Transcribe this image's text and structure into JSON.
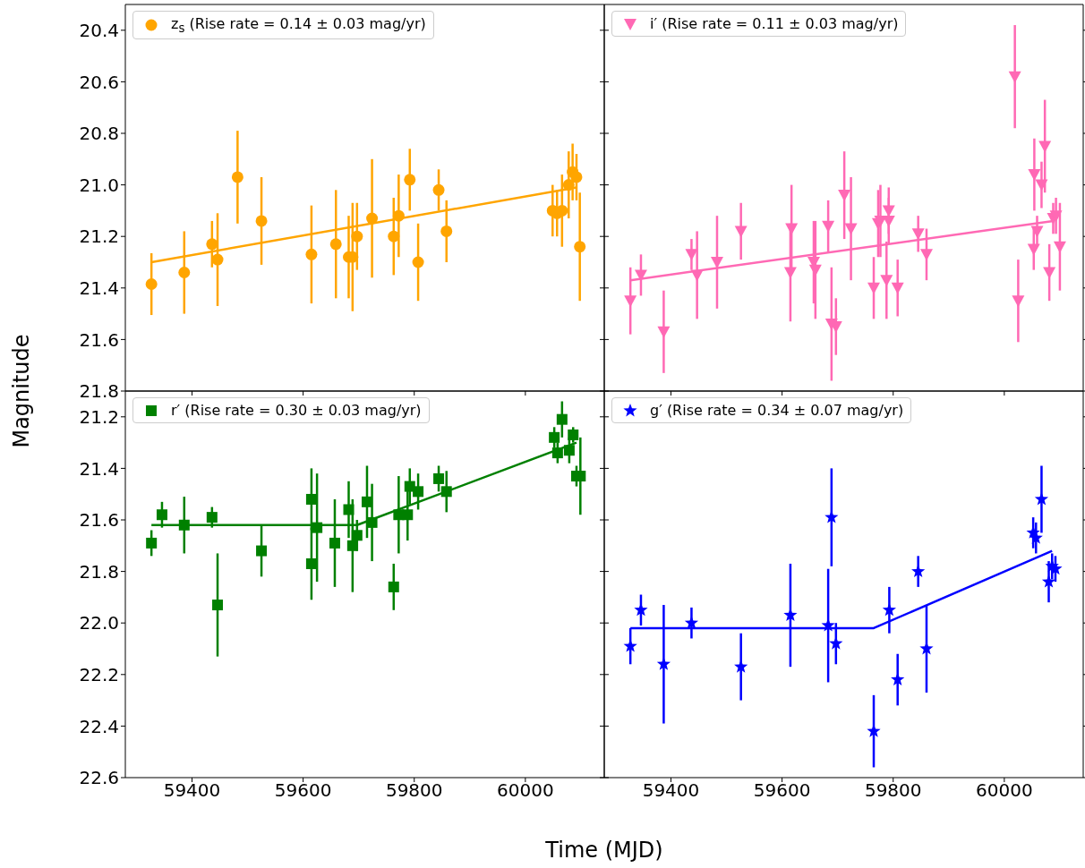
{
  "chart_data": [
    {
      "type": "scatter",
      "ylabel": "Magnitude",
      "legend": "top left",
      "tick_labels": "y",
      "xlim": [
        59280,
        60142
      ],
      "xticks": [
        59400,
        59600,
        59800,
        60000
      ],
      "ylim": [
        21.8,
        20.3
      ],
      "yticks": [
        20.4,
        20.6,
        20.8,
        {
          "value": 21,
          "label": "21.0"
        },
        21.2,
        21.4,
        21.6,
        21.8
      ],
      "series": [
        {
          "marker": "circle",
          "name": "z$_{s}$ (Rise rate = 0.14 ± 0.03 mag/yr)",
          "color": "#ffa500",
          "x": [
            59327,
            59386,
            59436,
            59446,
            59482,
            59525,
            59615,
            59659,
            59682,
            59689,
            59697,
            59724,
            59763,
            59772,
            59792,
            59807,
            59844,
            59858,
            60049,
            60057,
            60066,
            60078,
            60085,
            60092,
            60098
          ],
          "values": [
            21.385,
            21.34,
            21.23,
            21.29,
            20.97,
            21.14,
            21.27,
            21.23,
            21.28,
            21.28,
            21.2,
            21.13,
            21.2,
            21.12,
            20.98,
            21.3,
            21.02,
            21.18,
            21.1,
            21.11,
            21.1,
            21.0,
            20.95,
            20.97,
            21.24
          ],
          "errors": [
            0.12,
            0.16,
            0.09,
            0.18,
            0.18,
            0.17,
            0.19,
            0.21,
            0.16,
            0.21,
            0.13,
            0.23,
            0.15,
            0.16,
            0.12,
            0.15,
            0.08,
            0.12,
            0.1,
            0.09,
            0.14,
            0.13,
            0.11,
            0.09,
            0.21
          ]
        },
        {
          "type": "line",
          "color": "#ffa500",
          "x": [
            59327,
            60092
          ],
          "values": [
            21.3,
            21.01
          ]
        }
      ]
    },
    {
      "type": "scatter",
      "legend": "top left",
      "tick_labels": false,
      "xlim": [
        59280,
        60142
      ],
      "xticks": [
        59400,
        59600,
        59800,
        60000
      ],
      "ylim": [
        21.8,
        20.3
      ],
      "yticks": [
        {
          "value": 20.4,
          "label": null
        },
        {
          "value": 20.6,
          "label": null
        },
        {
          "value": 20.8,
          "label": null
        },
        {
          "value": 21,
          "label": null
        },
        {
          "value": 21.2,
          "label": null
        },
        {
          "value": 21.4,
          "label": null
        },
        {
          "value": 21.6,
          "label": null
        },
        {
          "value": 21.8,
          "label": null
        }
      ],
      "series": [
        {
          "marker": "triangle",
          "name": "i′ (Rise rate = 0.11 ± 0.03 mag/yr)",
          "color": "#ff69b4",
          "x": [
            59327,
            59346,
            59387,
            59437,
            59447,
            59483,
            59526,
            59617,
            59615,
            59657,
            59660,
            59683,
            59689,
            59697,
            59712,
            59724,
            59765,
            59773,
            59777,
            59788,
            59792,
            59792,
            59808,
            59845,
            59860,
            60019,
            60025,
            60054,
            60053,
            60059,
            60067,
            60073,
            60081,
            60088,
            60093,
            60100
          ],
          "values": [
            21.45,
            21.35,
            21.57,
            21.27,
            21.35,
            21.3,
            21.18,
            21.17,
            21.34,
            21.3,
            21.33,
            21.16,
            21.54,
            21.55,
            21.04,
            21.17,
            21.4,
            21.15,
            21.14,
            21.37,
            21.1,
            21.14,
            21.4,
            21.19,
            21.27,
            20.58,
            21.45,
            20.96,
            21.25,
            21.18,
            21.0,
            20.85,
            21.34,
            21.13,
            21.12,
            21.24
          ],
          "errors": [
            0.13,
            0.08,
            0.16,
            0.06,
            0.17,
            0.18,
            0.11,
            0.17,
            0.19,
            0.16,
            0.19,
            0.1,
            0.22,
            0.11,
            0.17,
            0.2,
            0.12,
            0.13,
            0.14,
            0.15,
            0.09,
            0.09,
            0.11,
            0.07,
            0.1,
            0.2,
            0.16,
            0.14,
            0.08,
            0.06,
            0.09,
            0.18,
            0.11,
            0.06,
            0.07,
            0.17
          ]
        },
        {
          "type": "line",
          "color": "#ff69b4",
          "x": [
            59327,
            60088
          ],
          "values": [
            21.37,
            21.14
          ]
        }
      ]
    },
    {
      "type": "scatter",
      "xlabel": "Time (MJD)",
      "legend": "top left",
      "xlim": [
        59280,
        60142
      ],
      "xticks": [
        59400,
        59600,
        59800,
        60000
      ],
      "ylim": [
        22.6,
        21.1
      ],
      "yticks": [
        21.2,
        21.4,
        21.6,
        21.8,
        {
          "value": 22,
          "label": "22.0"
        },
        22.2,
        22.4,
        22.6
      ],
      "series": [
        {
          "marker": "square",
          "name": "r′ (Rise rate = 0.30 ± 0.03 mag/yr)",
          "color": "#008000",
          "x": [
            59327,
            59346,
            59386,
            59436,
            59446,
            59525,
            59615,
            59615,
            59625,
            59657,
            59682,
            59689,
            59697,
            59715,
            59724,
            59763,
            59772,
            59788,
            59792,
            59807,
            59844,
            59858,
            60052,
            60058,
            60066,
            60079,
            60086,
            60092,
            60099
          ],
          "values": [
            21.69,
            21.58,
            21.62,
            21.59,
            21.93,
            21.72,
            21.52,
            21.77,
            21.63,
            21.69,
            21.56,
            21.7,
            21.66,
            21.53,
            21.61,
            21.86,
            21.58,
            21.58,
            21.47,
            21.49,
            21.44,
            21.49,
            21.28,
            21.34,
            21.21,
            21.33,
            21.27,
            21.43,
            21.43
          ],
          "errors": [
            0.05,
            0.05,
            0.11,
            0.04,
            0.2,
            0.1,
            0.12,
            0.14,
            0.21,
            0.17,
            0.11,
            0.18,
            0.06,
            0.14,
            0.15,
            0.09,
            0.15,
            0.1,
            0.07,
            0.07,
            0.05,
            0.08,
            0.04,
            0.04,
            0.07,
            0.05,
            0.03,
            0.04,
            0.15
          ]
        },
        {
          "type": "line",
          "color": "#008000",
          "x": [
            59327,
            59697,
            60092
          ],
          "values": [
            21.62,
            21.62,
            21.3
          ]
        }
      ]
    },
    {
      "type": "scatter",
      "legend": "top left",
      "tick_labels": "x",
      "xlim": [
        59280,
        60142
      ],
      "xticks": [
        59400,
        59600,
        59800,
        60000
      ],
      "ylim": [
        22.6,
        21.1
      ],
      "yticks": [
        {
          "value": 21.2,
          "label": null
        },
        {
          "value": 21.4,
          "label": null
        },
        {
          "value": 21.6,
          "label": null
        },
        {
          "value": 21.8,
          "label": null
        },
        {
          "value": 22,
          "label": null
        },
        {
          "value": 22.2,
          "label": null
        },
        {
          "value": 22.4,
          "label": null
        },
        {
          "value": 22.6,
          "label": null
        }
      ],
      "series": [
        {
          "marker": "star",
          "name": "g′ (Rise rate = 0.34 ± 0.07 mag/yr)",
          "color": "#0000ff",
          "x": [
            59327,
            59346,
            59387,
            59437,
            59526,
            59615,
            59683,
            59689,
            59697,
            59765,
            59793,
            59808,
            59845,
            59860,
            60052,
            60057,
            60067,
            60080,
            60086,
            60092
          ],
          "values": [
            22.09,
            21.95,
            22.16,
            22.0,
            22.17,
            21.97,
            22.01,
            21.59,
            22.08,
            22.42,
            21.95,
            22.22,
            21.8,
            22.1,
            21.65,
            21.67,
            21.52,
            21.84,
            21.78,
            21.79
          ],
          "errors": [
            0.07,
            0.06,
            0.23,
            0.06,
            0.13,
            0.2,
            0.22,
            0.19,
            0.08,
            0.14,
            0.09,
            0.1,
            0.06,
            0.17,
            0.06,
            0.06,
            0.13,
            0.08,
            0.05,
            0.05
          ]
        },
        {
          "type": "line",
          "color": "#0000ff",
          "x": [
            59327,
            59765,
            60086
          ],
          "values": [
            22.02,
            22.02,
            21.72
          ]
        }
      ]
    }
  ]
}
